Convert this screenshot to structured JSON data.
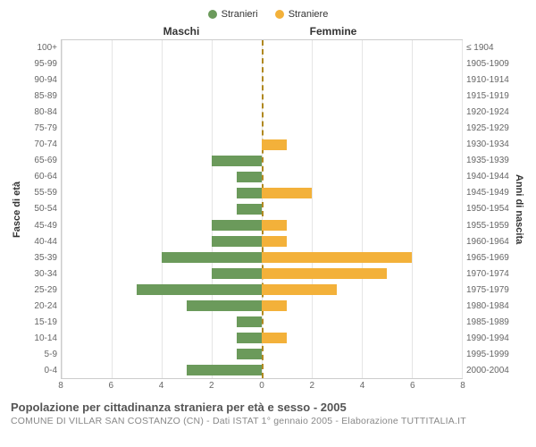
{
  "legend": {
    "male": {
      "label": "Stranieri",
      "color": "#6b9a5b"
    },
    "female": {
      "label": "Straniere",
      "color": "#f3b13a"
    }
  },
  "header": {
    "male": "Maschi",
    "female": "Femmine"
  },
  "axis_left": {
    "label": "Fasce di età"
  },
  "axis_right": {
    "label": "Anni di nascita"
  },
  "x_max": 8,
  "x_ticks": [
    8,
    6,
    4,
    2,
    0,
    2,
    4,
    6,
    8
  ],
  "rows": [
    {
      "age": "100+",
      "birth": "≤ 1904",
      "m": 0,
      "f": 0
    },
    {
      "age": "95-99",
      "birth": "1905-1909",
      "m": 0,
      "f": 0
    },
    {
      "age": "90-94",
      "birth": "1910-1914",
      "m": 0,
      "f": 0
    },
    {
      "age": "85-89",
      "birth": "1915-1919",
      "m": 0,
      "f": 0
    },
    {
      "age": "80-84",
      "birth": "1920-1924",
      "m": 0,
      "f": 0
    },
    {
      "age": "75-79",
      "birth": "1925-1929",
      "m": 0,
      "f": 0
    },
    {
      "age": "70-74",
      "birth": "1930-1934",
      "m": 0,
      "f": 1
    },
    {
      "age": "65-69",
      "birth": "1935-1939",
      "m": 2,
      "f": 0
    },
    {
      "age": "60-64",
      "birth": "1940-1944",
      "m": 1,
      "f": 0
    },
    {
      "age": "55-59",
      "birth": "1945-1949",
      "m": 1,
      "f": 2
    },
    {
      "age": "50-54",
      "birth": "1950-1954",
      "m": 1,
      "f": 0
    },
    {
      "age": "45-49",
      "birth": "1955-1959",
      "m": 2,
      "f": 1
    },
    {
      "age": "40-44",
      "birth": "1960-1964",
      "m": 2,
      "f": 1
    },
    {
      "age": "35-39",
      "birth": "1965-1969",
      "m": 4,
      "f": 6
    },
    {
      "age": "30-34",
      "birth": "1970-1974",
      "m": 2,
      "f": 5
    },
    {
      "age": "25-29",
      "birth": "1975-1979",
      "m": 5,
      "f": 3
    },
    {
      "age": "20-24",
      "birth": "1980-1984",
      "m": 3,
      "f": 1
    },
    {
      "age": "15-19",
      "birth": "1985-1989",
      "m": 1,
      "f": 0
    },
    {
      "age": "10-14",
      "birth": "1990-1994",
      "m": 1,
      "f": 1
    },
    {
      "age": "5-9",
      "birth": "1995-1999",
      "m": 1,
      "f": 0
    },
    {
      "age": "0-4",
      "birth": "2000-2004",
      "m": 3,
      "f": 0
    }
  ],
  "styling": {
    "grid_color": "#e5e5e5",
    "centerline_color": "#b08820",
    "bar_height_pct": 64,
    "background": "#ffffff",
    "font_family": "Arial",
    "tick_fontsize": 10,
    "label_fontsize": 11,
    "header_fontsize": 12,
    "title_fontsize": 13
  },
  "caption": {
    "title": "Popolazione per cittadinanza straniera per età e sesso - 2005",
    "subtitle": "COMUNE DI VILLAR SAN COSTANZO (CN) - Dati ISTAT 1° gennaio 2005 - Elaborazione TUTTITALIA.IT"
  }
}
